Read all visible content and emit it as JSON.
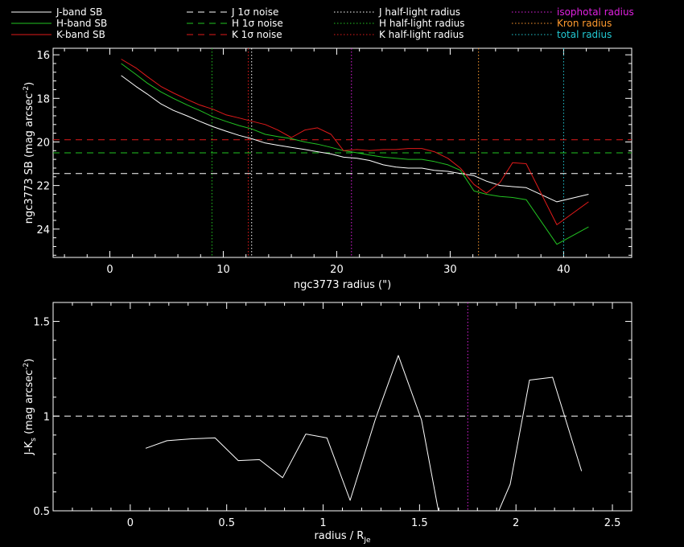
{
  "colors": {
    "background": "#000000",
    "white": "#ffffff",
    "green": "#22c322",
    "red": "#e11a1a",
    "magenta": "#e020e0",
    "orange": "#ff9a2e",
    "cyan": "#22c8d2"
  },
  "legend": [
    {
      "label": "J-band SB",
      "color": "white",
      "style": "solid"
    },
    {
      "label": "H-band SB",
      "color": "green",
      "style": "solid"
    },
    {
      "label": "K-band SB",
      "color": "red",
      "style": "solid"
    },
    {
      "label": "J 1σ noise",
      "color": "white",
      "style": "dash"
    },
    {
      "label": "H 1σ noise",
      "color": "green",
      "style": "dash"
    },
    {
      "label": "K 1σ noise",
      "color": "red",
      "style": "dash"
    },
    {
      "label": "J half-light radius",
      "color": "white",
      "style": "dot"
    },
    {
      "label": "H half-light radius",
      "color": "green",
      "style": "dot"
    },
    {
      "label": "K half-light radius",
      "color": "red",
      "style": "dot"
    },
    {
      "label": "isophotal radius",
      "color": "magenta",
      "style": "dot",
      "text_color": "magenta"
    },
    {
      "label": "Kron radius",
      "color": "orange",
      "style": "dot",
      "text_color": "orange"
    },
    {
      "label": "total radius",
      "color": "cyan",
      "style": "dot",
      "text_color": "cyan"
    }
  ],
  "chart_data": [
    {
      "type": "line",
      "xlabel": "ngc3773 radius (\")",
      "ylabel_main": "ngc3773 SB (mag arcsec",
      "ylabel_sup": "-2",
      "ylabel_end": ")",
      "xlim": [
        -5,
        46
      ],
      "ylim": [
        25.3,
        15.7
      ],
      "xticks": [
        0,
        10,
        20,
        30,
        40
      ],
      "yticks": [
        16,
        18,
        20,
        22,
        24
      ],
      "series": [
        {
          "name": "J-band SB",
          "color": "white",
          "x": [
            1.0,
            2.3,
            3.3,
            4.5,
            5.6,
            6.8,
            7.9,
            9.1,
            10.2,
            11.4,
            12.5,
            13.7,
            14.8,
            16.0,
            17.2,
            18.3,
            19.5,
            20.6,
            21.8,
            22.9,
            24.1,
            25.2,
            26.3,
            27.5,
            28.6,
            29.8,
            30.9,
            32.1,
            33.2,
            34.4,
            35.5,
            36.7,
            39.4,
            42.2
          ],
          "y": [
            16.95,
            17.45,
            17.8,
            18.25,
            18.55,
            18.8,
            19.05,
            19.3,
            19.5,
            19.7,
            19.85,
            20.05,
            20.15,
            20.25,
            20.35,
            20.45,
            20.55,
            20.7,
            20.75,
            20.85,
            21.05,
            21.15,
            21.2,
            21.2,
            21.3,
            21.35,
            21.45,
            21.55,
            21.8,
            22.0,
            22.05,
            22.1,
            22.75,
            22.4
          ]
        },
        {
          "name": "H-band SB",
          "color": "green",
          "x": [
            1.0,
            2.3,
            3.3,
            4.5,
            5.6,
            6.8,
            7.9,
            9.1,
            10.2,
            11.4,
            12.5,
            13.7,
            14.8,
            16.0,
            17.2,
            18.3,
            19.5,
            20.6,
            21.8,
            22.9,
            24.1,
            25.2,
            26.3,
            27.5,
            28.6,
            29.8,
            30.9,
            32.1,
            33.2,
            34.4,
            35.5,
            36.7,
            39.4,
            42.2
          ],
          "y": [
            16.4,
            16.9,
            17.3,
            17.7,
            18.0,
            18.3,
            18.55,
            18.85,
            19.05,
            19.25,
            19.4,
            19.65,
            19.75,
            19.85,
            20.0,
            20.1,
            20.25,
            20.4,
            20.5,
            20.6,
            20.7,
            20.75,
            20.8,
            20.8,
            20.9,
            21.05,
            21.3,
            22.25,
            22.4,
            22.5,
            22.55,
            22.65,
            24.7,
            23.9
          ]
        },
        {
          "name": "K-band SB",
          "color": "red",
          "x": [
            1.0,
            2.3,
            3.3,
            4.5,
            5.6,
            6.8,
            7.9,
            9.1,
            10.2,
            11.4,
            12.5,
            13.7,
            14.8,
            16.0,
            17.2,
            18.3,
            19.5,
            20.6,
            21.8,
            22.9,
            24.1,
            25.2,
            26.3,
            27.5,
            28.6,
            29.8,
            30.9,
            32.1,
            33.2,
            34.4,
            35.5,
            36.7,
            39.4,
            42.2
          ],
          "y": [
            16.2,
            16.6,
            17.0,
            17.45,
            17.75,
            18.05,
            18.3,
            18.5,
            18.75,
            18.9,
            19.05,
            19.2,
            19.45,
            19.8,
            19.45,
            19.35,
            19.65,
            20.4,
            20.35,
            20.4,
            20.35,
            20.35,
            20.3,
            20.3,
            20.45,
            20.75,
            21.2,
            21.95,
            22.35,
            21.85,
            20.95,
            21.0,
            23.8,
            22.75
          ]
        }
      ],
      "hlines": [
        {
          "name": "J 1σ noise",
          "y": 21.45,
          "color": "white"
        },
        {
          "name": "H 1σ noise",
          "y": 20.5,
          "color": "green"
        },
        {
          "name": "K 1σ noise",
          "y": 19.9,
          "color": "red"
        }
      ],
      "vlines": [
        {
          "name": "J half-light radius",
          "x": 12.5,
          "color": "white"
        },
        {
          "name": "H half-light radius",
          "x": 9.0,
          "color": "green"
        },
        {
          "name": "K half-light radius",
          "x": 12.2,
          "color": "red"
        },
        {
          "name": "isophotal radius",
          "x": 21.3,
          "color": "magenta"
        },
        {
          "name": "Kron radius",
          "x": 32.5,
          "color": "orange"
        },
        {
          "name": "total radius",
          "x": 40.0,
          "color": "cyan"
        }
      ]
    },
    {
      "type": "line",
      "xlabel": "radius / R",
      "xlabel_sub": "Je",
      "ylabel_main": "J-K",
      "ylabel_sub": "s",
      "ylabel_end": " (mag arcsec",
      "ylabel_sup": "-2",
      "ylabel_tail": ")",
      "xlim": [
        -0.4,
        2.6
      ],
      "ylim": [
        0.5,
        1.6
      ],
      "xticks": [
        0,
        0.5,
        1,
        1.5,
        2,
        2.5
      ],
      "xtick_labels": [
        "0",
        "0.5",
        "1",
        "1.5",
        "2",
        "2.5"
      ],
      "yticks": [
        0.5,
        1,
        1.5
      ],
      "ytick_labels": [
        "0.5",
        "1",
        "1.5"
      ],
      "series": [
        {
          "name": "J-Ks",
          "color": "white",
          "x": [
            0.08,
            0.19,
            0.25,
            0.32,
            0.44,
            0.56,
            0.67,
            0.79,
            0.91,
            1.02,
            1.14,
            1.27,
            1.39,
            1.51,
            1.62,
            1.74,
            1.86,
            1.97,
            2.07,
            2.19,
            2.34
          ],
          "y": [
            0.83,
            0.87,
            0.875,
            0.88,
            0.885,
            0.765,
            0.77,
            0.675,
            0.905,
            0.885,
            0.555,
            0.98,
            1.32,
            0.98,
            0.38,
            0.38,
            0.38,
            0.64,
            1.19,
            1.205,
            0.71
          ]
        }
      ],
      "hlines": [
        {
          "name": "unity",
          "y": 1.0,
          "color": "white"
        }
      ],
      "vlines": [
        {
          "name": "isophotal radius",
          "x": 1.75,
          "color": "magenta"
        }
      ]
    }
  ]
}
